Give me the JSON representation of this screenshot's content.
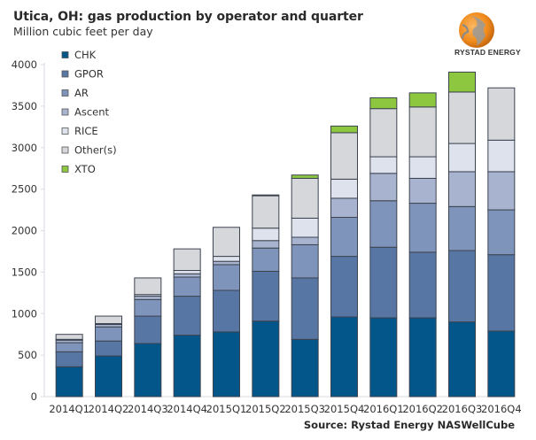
{
  "header": {
    "title": "Utica, OH: gas production by operator and quarter",
    "subtitle": "Million cubic feet per day"
  },
  "logo": {
    "text": "RYSTAD ENERGY",
    "icon": "globe-logo-icon"
  },
  "footer": {
    "source": "Source: Rystad Energy NASWellCube"
  },
  "colors": {
    "CHK": "#03568a",
    "GPOR": "#5876a3",
    "AR": "#7f94bb",
    "Ascent": "#a8b4cf",
    "RICE": "#dde2ec",
    "Other(s)": "#d6d7da",
    "XTO": "#8dc63f"
  },
  "chart_data": {
    "type": "bar",
    "stacked": true,
    "title": "Utica, OH: gas production by operator and quarter",
    "subtitle": "Million cubic feet per day",
    "xlabel": "",
    "ylabel": "Million cubic feet per day",
    "ylim": [
      0,
      4000
    ],
    "yticks": [
      0,
      500,
      1000,
      1500,
      2000,
      2500,
      3000,
      3500,
      4000
    ],
    "grid": false,
    "legend_position": "top-left",
    "categories": [
      "2014Q1",
      "2014Q2",
      "2014Q3",
      "2014Q4",
      "2015Q1",
      "2015Q2",
      "2015Q3",
      "2015Q4",
      "2016Q1",
      "2016Q2",
      "2016Q3",
      "2016Q4"
    ],
    "series": [
      {
        "name": "CHK",
        "values": [
          360,
          490,
          640,
          740,
          780,
          910,
          690,
          960,
          950,
          950,
          900,
          790
        ]
      },
      {
        "name": "GPOR",
        "values": [
          180,
          180,
          330,
          470,
          500,
          600,
          740,
          730,
          850,
          790,
          860,
          920
        ]
      },
      {
        "name": "AR",
        "values": [
          110,
          170,
          200,
          230,
          310,
          280,
          400,
          470,
          560,
          590,
          530,
          540
        ]
      },
      {
        "name": "Ascent",
        "values": [
          30,
          30,
          40,
          40,
          40,
          90,
          90,
          230,
          330,
          300,
          420,
          460
        ]
      },
      {
        "name": "RICE",
        "values": [
          10,
          10,
          20,
          40,
          60,
          150,
          230,
          230,
          200,
          260,
          340,
          380
        ]
      },
      {
        "name": "Other(s)",
        "values": [
          60,
          90,
          200,
          260,
          350,
          390,
          480,
          560,
          580,
          600,
          620,
          630
        ]
      },
      {
        "name": "XTO",
        "values": [
          0,
          0,
          0,
          0,
          0,
          10,
          40,
          80,
          130,
          170,
          240,
          0
        ]
      }
    ]
  }
}
